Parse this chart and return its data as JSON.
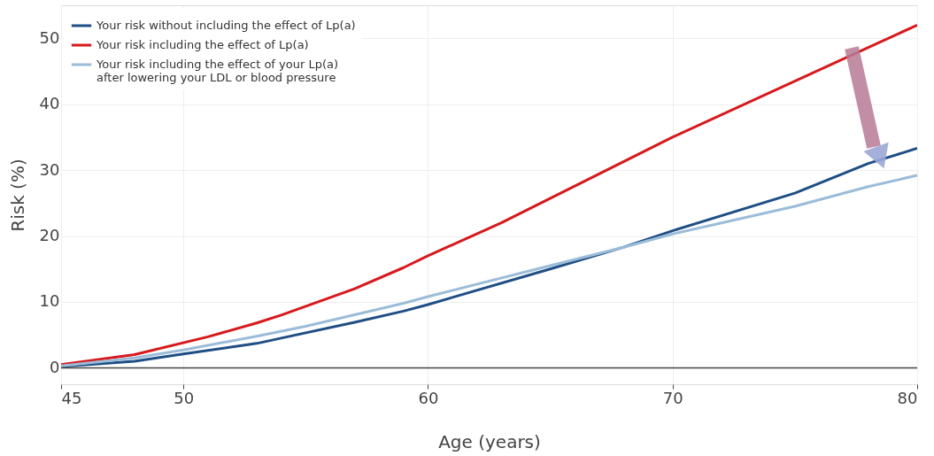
{
  "chart_data": {
    "type": "line",
    "xlabel": "Age (years)",
    "ylabel": "Risk (%)",
    "xlim": [
      45,
      80
    ],
    "ylim": [
      -2.5,
      55
    ],
    "xticks": [
      45,
      50,
      60,
      70,
      80
    ],
    "yticks": [
      0,
      10,
      20,
      30,
      40,
      50
    ],
    "grid": true,
    "legend": "top left",
    "line_style": "solid",
    "marker": "none",
    "ref_lines": [
      {
        "axis": "y",
        "value": 0,
        "color": "#444444"
      }
    ],
    "series": [
      {
        "name": "Your risk without including the effect of Lp(a)",
        "color": "#1f4e85",
        "x": [
          45,
          48,
          50,
          53,
          54,
          57,
          59,
          60,
          65,
          68,
          70,
          75,
          78,
          80
        ],
        "values": [
          0.2,
          1,
          2.1,
          3.7,
          4.5,
          6.9,
          8.6,
          9.6,
          15,
          18.3,
          20.8,
          26.5,
          31,
          33.3
        ]
      },
      {
        "name": "Your risk including the effect of Lp(a)",
        "color": "#d7191c",
        "x": [
          45,
          48,
          51,
          53,
          54,
          57,
          59,
          60,
          63,
          70,
          78,
          80
        ],
        "values": [
          0.5,
          2,
          4.7,
          6.8,
          8,
          12,
          15.2,
          17,
          22,
          35,
          48.6,
          52
        ]
      },
      {
        "name": "Your risk including the effect of your Lp(a)\n after lowering your LDL or blood pressure",
        "color": "#9bbcd8",
        "x": [
          45,
          48,
          50,
          53,
          55,
          59,
          60,
          65,
          68,
          70,
          75,
          78,
          80
        ],
        "values": [
          0.3,
          1.5,
          2.7,
          4.8,
          6.3,
          9.8,
          10.8,
          15.5,
          18.3,
          20.3,
          24.5,
          27.5,
          29.2
        ]
      }
    ]
  }
}
